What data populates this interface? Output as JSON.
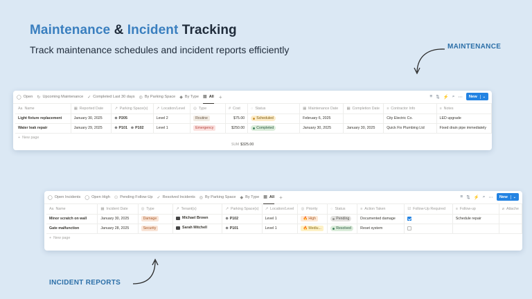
{
  "hero": {
    "title_part1": "Maintenance",
    "title_amp": " & ",
    "title_part2": "Incident",
    "title_part3": " Tracking",
    "subtitle": "Track maintenance schedules and incident reports efficiently"
  },
  "callouts": {
    "maintenance": "MAINTENANCE",
    "incident": "INCIDENT REPORTS"
  },
  "colors": {
    "background": "#dbe8f4",
    "accent": "#3a7fbf",
    "button": "#2383e2"
  },
  "maintenance": {
    "tabs": [
      {
        "label": "Open",
        "icon": "circle-icon"
      },
      {
        "label": "Upcoming Maintenance",
        "icon": "refresh-icon"
      },
      {
        "label": "Completed Last 30 days",
        "icon": "check-icon"
      },
      {
        "label": "By Parking Space",
        "icon": "target-icon"
      },
      {
        "label": "By Type",
        "icon": "tag-icon"
      },
      {
        "label": "All",
        "icon": "table-icon",
        "active": true
      }
    ],
    "new_button": "New",
    "columns": [
      "Name",
      "Reported Date",
      "Parking Space(s)",
      "Location/Level",
      "Type",
      "Cost",
      "Status",
      "Maintenance Date",
      "Completion Date",
      "Contractor Info",
      "Notes"
    ],
    "rows": [
      {
        "name": "Light fixture replacement",
        "reported": "January 30, 2025",
        "spaces": [
          "P205"
        ],
        "location": "Level 2",
        "type": "Routine",
        "cost": "$75.00",
        "status": "Scheduled",
        "maint_date": "February 6, 2025",
        "completion": "",
        "contractor": "City Electric Co.",
        "notes": "LED upgrade"
      },
      {
        "name": "Water leak repair",
        "reported": "January 29, 2025",
        "spaces": [
          "P101",
          "P102"
        ],
        "location": "Level 1",
        "type": "Emergency",
        "cost": "$250.00",
        "status": "Completed",
        "maint_date": "January 30, 2025",
        "completion": "January 30, 2025",
        "contractor": "Quick Fix Plumbing Ltd",
        "notes": "Fixed drain pipe immediately"
      }
    ],
    "new_page": "New page",
    "sum_label": "SUM",
    "sum_value": "$325.00"
  },
  "incident": {
    "tabs": [
      {
        "label": "Open Incidents",
        "icon": "circle-icon"
      },
      {
        "label": "Open High",
        "icon": "circle-icon"
      },
      {
        "label": "Pending Follow-Up",
        "icon": "users-icon"
      },
      {
        "label": "Resolved Incidents",
        "icon": "check-icon"
      },
      {
        "label": "By Parking Space",
        "icon": "target-icon"
      },
      {
        "label": "By Type",
        "icon": "tag-icon"
      },
      {
        "label": "All",
        "icon": "table-icon",
        "active": true
      }
    ],
    "new_button": "New",
    "columns": [
      "Name",
      "Incident Date",
      "Type",
      "Tenant(s)",
      "Parking Space(s)",
      "Location/Level",
      "Priority",
      "Status",
      "Action Taken",
      "Follow-Up Required",
      "Follow-up",
      "Attache"
    ],
    "rows": [
      {
        "name": "Minor scratch on wall",
        "date": "January 30, 2025",
        "type": "Damage",
        "tenant": "Michael Brown",
        "space": "P102",
        "location": "Level 1",
        "priority": "High",
        "status": "Pending",
        "action": "Documented damage",
        "followup_required": true,
        "followup": "Schedule repair"
      },
      {
        "name": "Gate malfunction",
        "date": "January 28, 2025",
        "type": "Security",
        "tenant": "Sarah Mitchell",
        "space": "P101",
        "location": "Level 1",
        "priority": "Mediu...",
        "status": "Resolved",
        "action": "Reset system",
        "followup_required": false,
        "followup": ""
      }
    ],
    "new_page": "New page"
  }
}
